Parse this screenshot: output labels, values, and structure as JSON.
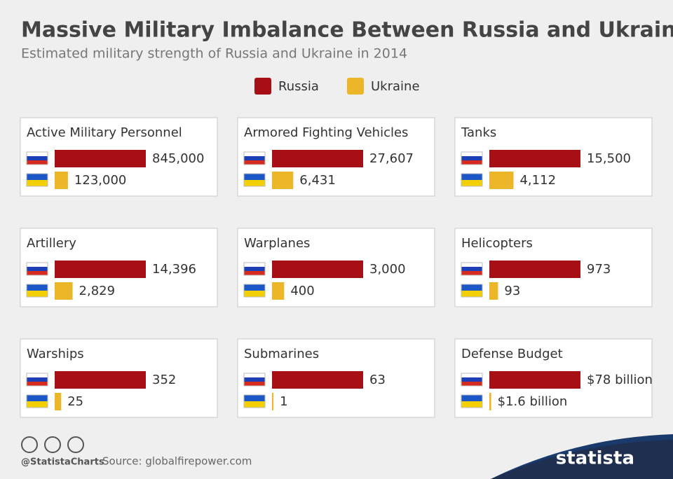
{
  "title": "Massive Military Imbalance Between Russia and Ukraine",
  "subtitle": "Estimated military strength of Russia and Ukraine in 2014",
  "legend": [
    {
      "name": "Russia",
      "color": "#a50f15"
    },
    {
      "name": "Ukraine",
      "color": "#ebb728"
    }
  ],
  "chart_data": [
    {
      "type": "bar",
      "title": "Active Military Personnel",
      "values": [
        845000,
        123000
      ],
      "value_labels": [
        "845,000",
        "123,000"
      ]
    },
    {
      "type": "bar",
      "title": "Armored Fighting Vehicles",
      "values": [
        27607,
        6431
      ],
      "value_labels": [
        "27,607",
        "6,431"
      ]
    },
    {
      "type": "bar",
      "title": "Tanks",
      "values": [
        15500,
        4112
      ],
      "value_labels": [
        "15,500",
        "4,112"
      ]
    },
    {
      "type": "bar",
      "title": "Artillery",
      "values": [
        14396,
        2829
      ],
      "value_labels": [
        "14,396",
        "2,829"
      ]
    },
    {
      "type": "bar",
      "title": "Warplanes",
      "values": [
        3000,
        400
      ],
      "value_labels": [
        "3,000",
        "400"
      ]
    },
    {
      "type": "bar",
      "title": "Helicopters",
      "values": [
        973,
        93
      ]
    },
    {
      "type": "bar",
      "title": "Warships",
      "values": [
        352,
        25
      ]
    },
    {
      "type": "bar",
      "title": "Submarines",
      "values": [
        63,
        1
      ]
    },
    {
      "type": "bar",
      "title": "Defense Budget",
      "values": [
        78,
        1.6
      ],
      "value_labels": [
        "$78 billion",
        "$1.6 billion"
      ]
    }
  ],
  "footer": {
    "handle": "@StatistaCharts",
    "source": "Source: globalfirepower.com",
    "brand": "statista"
  }
}
